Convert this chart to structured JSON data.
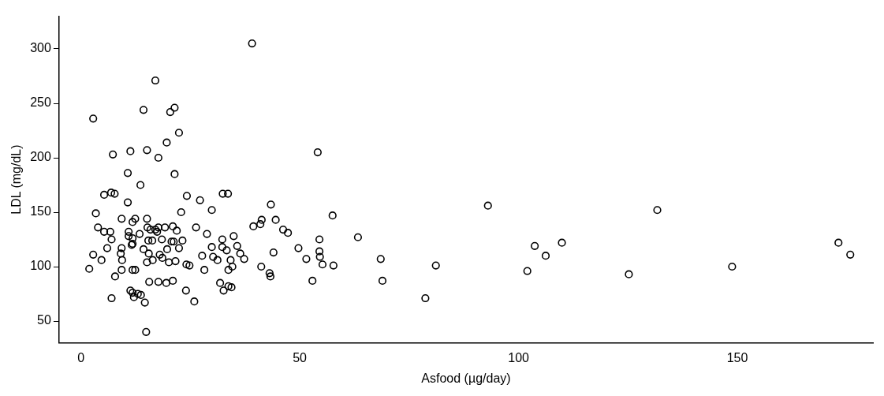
{
  "chart_data": {
    "type": "scatter",
    "xlabel": "Asfood (µg/day)",
    "ylabel": "LDL (mg/dL)",
    "marker": "circle",
    "xlim": [
      -5,
      181
    ],
    "ylim": [
      30,
      330
    ],
    "xticks": [
      0,
      50,
      100,
      150
    ],
    "yticks": [
      50,
      100,
      150,
      200,
      250,
      300
    ],
    "series": [
      {
        "color": "#000000",
        "x": [
          17.0,
          2.8,
          14.3,
          21.4,
          20.4,
          22.4,
          19.6,
          7.3,
          11.3,
          15.1,
          17.7,
          10.7,
          21.4,
          13.6,
          5.3,
          6.9,
          7.7,
          10.7,
          24.2,
          27.2,
          32.4,
          33.6,
          39.1,
          3.4,
          9.3,
          12.4,
          11.8,
          15.1,
          22.9,
          29.9,
          3.9,
          5.3,
          6.7,
          7.0,
          10.9,
          10.9,
          11.8,
          13.4,
          11.8,
          15.2,
          15.9,
          17.0,
          17.7,
          17.4,
          19.2,
          21.0,
          21.9,
          26.3,
          28.8,
          32.3,
          15.4,
          16.3,
          18.5,
          20.7,
          21.2,
          23.2,
          6.0,
          9.3,
          9.1,
          9.4,
          11.6,
          14.3,
          15.5,
          19.7,
          22.4,
          18.0,
          18.6,
          15.1,
          16.4,
          20.1,
          21.6,
          2.8,
          4.7,
          1.9,
          9.3,
          11.8,
          12.4,
          7.8,
          24.1,
          24.8,
          27.7,
          30.2,
          31.2,
          32.3,
          33.3,
          29.9,
          28.2,
          15.6,
          17.7,
          19.5,
          21.0,
          31.8,
          32.6,
          24.0,
          25.9,
          7.0,
          11.3,
          11.8,
          13.0,
          13.7,
          14.6,
          12.1,
          14.9,
          33.7,
          54.1,
          43.4,
          39.4,
          41.0,
          41.3,
          44.5,
          46.2,
          47.3,
          57.5,
          63.3,
          34.9,
          35.7,
          36.4,
          37.3,
          34.2,
          34.6,
          33.7,
          34.4,
          44.0,
          41.2,
          43.1,
          43.3,
          49.7,
          51.5,
          54.5,
          54.5,
          54.6,
          55.2,
          57.7,
          52.9,
          68.5,
          68.9,
          93.0,
          81.1,
          78.7,
          102.0,
          103.7,
          106.2,
          109.9,
          125.2,
          131.7,
          148.8,
          173.1,
          175.8
        ],
        "values": [
          271,
          236,
          244,
          246,
          242,
          223,
          214,
          203,
          206,
          207,
          200,
          186,
          185,
          175,
          166,
          168,
          167,
          159,
          165,
          161,
          167,
          167,
          305,
          149,
          144,
          144,
          141,
          144,
          150,
          152,
          136,
          132,
          132,
          125,
          132,
          128,
          126,
          130,
          121,
          136,
          134,
          134,
          136,
          132,
          136,
          137,
          133,
          136,
          130,
          125,
          124,
          124,
          125,
          123,
          123,
          124,
          117,
          117,
          112,
          106,
          120,
          116,
          112,
          116,
          117,
          111,
          108,
          104,
          106,
          104,
          105,
          111,
          106,
          98,
          97,
          97,
          97,
          91,
          102,
          101,
          110,
          109,
          106,
          118,
          115,
          118,
          97,
          86,
          86,
          85,
          87,
          85,
          78,
          78,
          68,
          71,
          78,
          76,
          75,
          74,
          67,
          72,
          40,
          82,
          205,
          157,
          137,
          139,
          143,
          143,
          134,
          131,
          147,
          127,
          128,
          119,
          112,
          107,
          106,
          100,
          97,
          81,
          113,
          100,
          94,
          91,
          117,
          107,
          125,
          114,
          109,
          102,
          101,
          87,
          107,
          87,
          156,
          101,
          71,
          96,
          119,
          110,
          122,
          93,
          152,
          100,
          122,
          111
        ]
      }
    ]
  }
}
